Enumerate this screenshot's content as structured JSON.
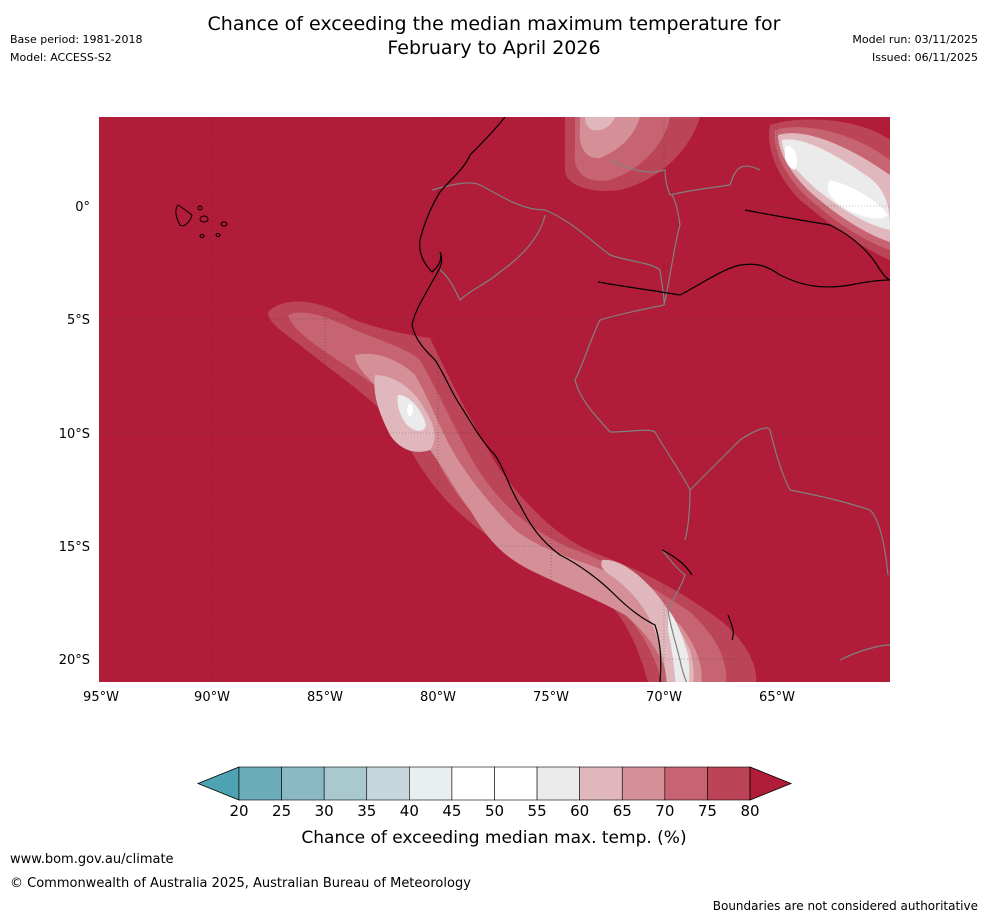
{
  "title_line1": "Chance of exceeding the median maximum temperature for",
  "title_line2": "February to April 2026",
  "meta_left": {
    "base_period": "Base period: 1981-2018",
    "model": "Model: ACCESS-S2"
  },
  "meta_right": {
    "model_run": "Model run: 03/11/2025",
    "issued": "Issued: 06/11/2025"
  },
  "map": {
    "lon_labels": [
      "95°W",
      "90°W",
      "85°W",
      "80°W",
      "75°W",
      "70°W",
      "65°W"
    ],
    "lat_labels": [
      "0°",
      "5°S",
      "10°S",
      "15°S",
      "20°S"
    ],
    "dominant_color": "#b11c38"
  },
  "colorbar": {
    "ticks": [
      "20",
      "25",
      "30",
      "35",
      "40",
      "45",
      "50",
      "55",
      "60",
      "65",
      "70",
      "75",
      "80"
    ],
    "colors": [
      "#6aacb8",
      "#8ab9c4",
      "#a9c9cf",
      "#c7d8dc",
      "#e9eef0",
      "#ffffff",
      "#ffffff",
      "#ebebeb",
      "#dfb7bc",
      "#d48f97",
      "#c76471",
      "#bb4556"
    ],
    "low_extend_color": "#4ea3b2",
    "high_extend_color": "#b11c38",
    "label": "Chance of exceeding median max. temp. (%)"
  },
  "footer": {
    "url": "www.bom.gov.au/climate",
    "copyright": "© Commonwealth of Australia 2025, Australian Bureau of Meteorology",
    "disclaimer": "Boundaries are not considered authoritative"
  }
}
